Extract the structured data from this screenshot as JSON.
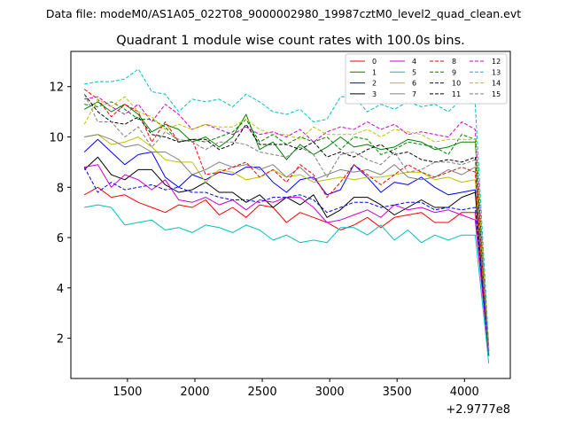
{
  "chart_data": {
    "type": "line",
    "suptitle": "Data file: modeM0/AS1A05_022T08_9000002980_19987cztM0_level2_quad_clean.evt",
    "title": "Quadrant 1 module wise count rates with 100.0s bins.",
    "xlabel": "",
    "ylabel": "",
    "x_offset_label": "+2.9777e8",
    "xlim": [
      1080,
      4340
    ],
    "ylim": [
      0.4,
      13.4
    ],
    "xticks": [
      1500,
      2000,
      2500,
      3000,
      3500,
      4000
    ],
    "yticks": [
      2,
      4,
      6,
      8,
      10,
      12
    ],
    "x": [
      1180,
      1280,
      1380,
      1480,
      1580,
      1680,
      1780,
      1880,
      1980,
      2080,
      2180,
      2280,
      2380,
      2480,
      2580,
      2680,
      2780,
      2880,
      2980,
      3080,
      3180,
      3280,
      3380,
      3480,
      3580,
      3680,
      3780,
      3880,
      3980,
      4080,
      4180
    ],
    "legend": {
      "placement": "top-right",
      "columns": 4
    },
    "series": [
      {
        "name": "0",
        "color": "#ff0000",
        "dash": "solid",
        "values": [
          7.7,
          8.0,
          7.6,
          7.7,
          7.4,
          7.2,
          7.0,
          7.3,
          7.2,
          7.5,
          6.9,
          7.2,
          6.8,
          7.3,
          7.2,
          6.6,
          7.0,
          6.8,
          6.6,
          6.3,
          6.5,
          6.8,
          6.4,
          6.8,
          6.9,
          7.0,
          6.6,
          6.6,
          7.0,
          7.0,
          1.3
        ]
      },
      {
        "name": "1",
        "color": "#008000",
        "dash": "solid",
        "values": [
          11.1,
          11.4,
          11.0,
          11.3,
          10.9,
          10.2,
          10.5,
          10.3,
          9.8,
          10.0,
          9.6,
          10.0,
          10.9,
          9.5,
          9.8,
          9.1,
          9.7,
          9.3,
          9.6,
          10.0,
          9.6,
          9.7,
          9.5,
          9.6,
          9.9,
          9.8,
          9.5,
          9.6,
          9.8,
          9.8,
          1.3
        ]
      },
      {
        "name": "2",
        "color": "#0000ff",
        "dash": "solid",
        "values": [
          9.4,
          9.9,
          9.4,
          8.9,
          9.3,
          9.4,
          8.4,
          8.0,
          8.5,
          8.3,
          8.6,
          8.5,
          8.8,
          8.8,
          8.2,
          7.8,
          8.3,
          8.4,
          7.7,
          7.9,
          8.9,
          8.4,
          7.8,
          8.2,
          8.1,
          8.4,
          8.0,
          7.7,
          7.8,
          7.9,
          1.3
        ]
      },
      {
        "name": "3",
        "color": "#000000",
        "dash": "solid",
        "values": [
          8.7,
          9.2,
          8.5,
          8.3,
          8.7,
          8.7,
          8.1,
          7.8,
          7.9,
          8.2,
          7.8,
          7.8,
          7.4,
          7.7,
          7.2,
          7.6,
          7.3,
          7.7,
          6.8,
          7.1,
          7.6,
          7.6,
          7.3,
          6.9,
          7.2,
          7.5,
          7.2,
          7.2,
          7.6,
          7.8,
          1.3
        ]
      },
      {
        "name": "4",
        "color": "#cc00cc",
        "dash": "solid",
        "values": [
          8.8,
          8.9,
          8.0,
          8.5,
          8.3,
          7.9,
          8.3,
          7.5,
          7.4,
          7.6,
          7.3,
          7.5,
          7.1,
          7.5,
          7.4,
          7.6,
          7.6,
          7.2,
          6.6,
          6.7,
          6.9,
          7.1,
          6.8,
          7.3,
          7.1,
          7.2,
          7.0,
          7.1,
          6.9,
          6.7,
          1.3
        ]
      },
      {
        "name": "5",
        "color": "#00bfbf",
        "dash": "solid",
        "values": [
          7.2,
          7.3,
          7.2,
          6.5,
          6.6,
          6.7,
          6.3,
          6.4,
          6.2,
          6.5,
          6.4,
          6.2,
          6.5,
          6.3,
          5.9,
          6.1,
          5.8,
          5.9,
          5.8,
          6.4,
          6.4,
          6.1,
          6.5,
          5.9,
          6.3,
          5.8,
          6.1,
          5.9,
          6.1,
          6.1,
          1.0
        ]
      },
      {
        "name": "6",
        "color": "#bfbf00",
        "dash": "solid",
        "values": [
          10.0,
          10.1,
          9.7,
          9.8,
          10.0,
          9.6,
          9.1,
          9.0,
          9.0,
          8.2,
          8.7,
          8.6,
          8.3,
          8.4,
          8.7,
          8.4,
          8.5,
          8.2,
          8.3,
          8.4,
          8.3,
          8.4,
          8.4,
          8.5,
          8.6,
          8.6,
          8.3,
          8.4,
          8.2,
          8.3,
          1.4
        ]
      },
      {
        "name": "7",
        "color": "#808080",
        "dash": "solid",
        "values": [
          10.0,
          10.1,
          9.9,
          9.6,
          9.7,
          9.4,
          9.4,
          9.1,
          8.5,
          8.7,
          9.0,
          8.8,
          8.9,
          8.7,
          8.9,
          8.4,
          8.8,
          8.3,
          8.5,
          8.7,
          8.6,
          8.7,
          8.5,
          8.9,
          8.4,
          8.3,
          8.4,
          8.7,
          8.5,
          8.8,
          1.4
        ]
      },
      {
        "name": "8",
        "color": "#ff0000",
        "dash": "dashed",
        "values": [
          11.9,
          11.5,
          10.8,
          11.3,
          11.0,
          9.8,
          10.6,
          9.8,
          9.9,
          8.5,
          8.6,
          8.8,
          9.0,
          8.4,
          8.7,
          8.2,
          8.9,
          8.5,
          7.6,
          8.2,
          8.9,
          8.5,
          8.1,
          8.5,
          8.9,
          8.6,
          8.4,
          8.6,
          8.8,
          8.6,
          1.5
        ]
      },
      {
        "name": "9",
        "color": "#008000",
        "dash": "dashed",
        "values": [
          11.3,
          11.2,
          11.4,
          11.1,
          10.7,
          10.7,
          10.4,
          9.8,
          9.9,
          9.8,
          10.0,
          10.2,
          10.7,
          9.8,
          10.1,
          9.7,
          10.0,
          9.8,
          10.0,
          9.5,
          10.0,
          9.9,
          9.3,
          9.5,
          9.8,
          9.7,
          9.6,
          9.3,
          10.1,
          9.9,
          1.5
        ]
      },
      {
        "name": "10",
        "color": "#0000ff",
        "dash": "dashed",
        "values": [
          8.8,
          7.8,
          8.2,
          7.9,
          8.0,
          8.1,
          7.9,
          8.0,
          7.8,
          7.8,
          7.6,
          7.5,
          7.5,
          7.4,
          7.6,
          7.6,
          7.7,
          7.5,
          7.0,
          7.2,
          7.4,
          7.4,
          7.2,
          7.3,
          7.4,
          7.4,
          7.1,
          7.2,
          7.1,
          7.2,
          1.4
        ]
      },
      {
        "name": "11",
        "color": "#000000",
        "dash": "dashed",
        "values": [
          11.7,
          11.0,
          10.6,
          10.5,
          10.8,
          10.1,
          10.0,
          9.8,
          9.9,
          9.9,
          9.5,
          9.7,
          10.5,
          9.7,
          9.7,
          9.7,
          9.5,
          9.8,
          9.2,
          9.4,
          9.2,
          9.5,
          9.7,
          9.3,
          9.4,
          9.1,
          9.0,
          9.1,
          9.0,
          9.2,
          1.5
        ]
      },
      {
        "name": "12",
        "color": "#cc00cc",
        "dash": "dashed",
        "values": [
          11.5,
          11.6,
          11.2,
          10.9,
          11.3,
          10.6,
          11.3,
          10.9,
          10.3,
          10.5,
          10.3,
          10.1,
          10.4,
          10.1,
          10.2,
          10.0,
          10.3,
          9.8,
          10.2,
          10.4,
          10.3,
          10.6,
          10.3,
          10.5,
          10.1,
          10.2,
          10.1,
          10.0,
          10.6,
          10.3,
          1.6
        ]
      },
      {
        "name": "13",
        "color": "#00bfbf",
        "dash": "dashed",
        "values": [
          12.1,
          12.2,
          12.2,
          12.3,
          12.7,
          11.8,
          11.7,
          11.0,
          11.5,
          11.4,
          11.5,
          11.2,
          11.7,
          11.4,
          11.0,
          10.9,
          11.1,
          10.6,
          10.7,
          11.6,
          11.6,
          11.0,
          11.3,
          11.1,
          11.4,
          11.2,
          11.3,
          11.0,
          11.5,
          11.3,
          1.7
        ]
      },
      {
        "name": "14",
        "color": "#bfbf00",
        "dash": "dashed",
        "values": [
          10.5,
          11.5,
          11.2,
          11.6,
          11.0,
          10.8,
          10.3,
          10.5,
          10.3,
          10.5,
          10.4,
          10.4,
          10.7,
          10.3,
          10.1,
          10.1,
          9.9,
          10.4,
          10.1,
          10.1,
          10.1,
          10.3,
          10.0,
          10.3,
          10.2,
          10.1,
          9.8,
          9.9,
          9.9,
          9.9,
          1.6
        ]
      },
      {
        "name": "15",
        "color": "#808080",
        "dash": "dashed",
        "values": [
          11.7,
          10.6,
          10.6,
          10.0,
          10.4,
          9.6,
          10.2,
          9.9,
          9.8,
          9.5,
          9.8,
          9.8,
          9.7,
          9.4,
          9.3,
          9.2,
          9.6,
          9.3,
          8.4,
          9.3,
          9.4,
          9.1,
          8.9,
          9.4,
          8.6,
          8.7,
          9.0,
          9.0,
          8.9,
          9.1,
          1.5
        ]
      }
    ]
  }
}
